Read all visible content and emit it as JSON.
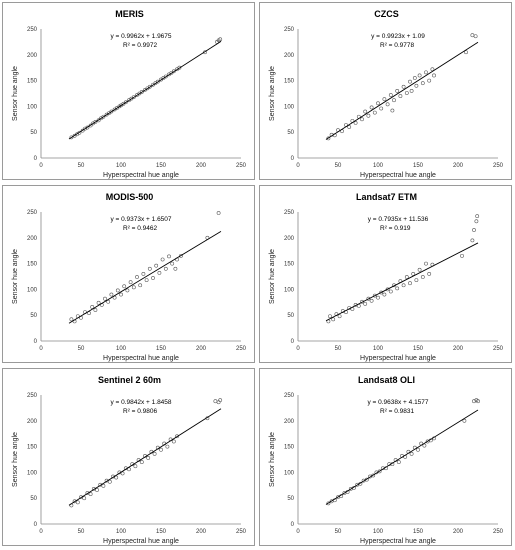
{
  "chart_data": [
    {
      "type": "scatter",
      "title": "MERIS",
      "xlabel": "Hyperspectral hue angle",
      "ylabel": "Sensor hue angle",
      "equation": "y = 0.9962x + 1.9675",
      "r2": "R² = 0.9972",
      "slope": 0.9962,
      "intercept": 1.9675,
      "xlim": [
        0,
        250
      ],
      "ylim": [
        0,
        250
      ],
      "xticks": [
        "0",
        "50",
        "100",
        "150",
        "200",
        "250"
      ],
      "yticks": [
        "0",
        "50",
        "100",
        "150",
        "200",
        "250"
      ],
      "points": [
        [
          38,
          40
        ],
        [
          42,
          43
        ],
        [
          45,
          46
        ],
        [
          48,
          49
        ],
        [
          52,
          53
        ],
        [
          55,
          57
        ],
        [
          58,
          59
        ],
        [
          62,
          63
        ],
        [
          65,
          67
        ],
        [
          68,
          70
        ],
        [
          72,
          73
        ],
        [
          75,
          77
        ],
        [
          78,
          80
        ],
        [
          82,
          84
        ],
        [
          85,
          87
        ],
        [
          88,
          90
        ],
        [
          92,
          94
        ],
        [
          95,
          97
        ],
        [
          98,
          100
        ],
        [
          100,
          102
        ],
        [
          103,
          105
        ],
        [
          106,
          108
        ],
        [
          110,
          112
        ],
        [
          113,
          115
        ],
        [
          116,
          118
        ],
        [
          120,
          122
        ],
        [
          123,
          125
        ],
        [
          126,
          128
        ],
        [
          130,
          132
        ],
        [
          133,
          135
        ],
        [
          136,
          138
        ],
        [
          140,
          142
        ],
        [
          143,
          145
        ],
        [
          146,
          148
        ],
        [
          150,
          152
        ],
        [
          153,
          155
        ],
        [
          156,
          158
        ],
        [
          160,
          162
        ],
        [
          163,
          165
        ],
        [
          166,
          168
        ],
        [
          170,
          172
        ],
        [
          173,
          175
        ],
        [
          205,
          205
        ],
        [
          220,
          225
        ],
        [
          222,
          228
        ],
        [
          224,
          230
        ]
      ]
    },
    {
      "type": "scatter",
      "title": "CZCS",
      "xlabel": "Hyperspectral hue angle",
      "ylabel": "Sensor hue angle",
      "equation": "y = 0.9923x + 1.09",
      "r2": "R² = 0.9778",
      "slope": 0.9923,
      "intercept": 1.09,
      "xlim": [
        0,
        250
      ],
      "ylim": [
        0,
        250
      ],
      "xticks": [
        "0",
        "50",
        "100",
        "150",
        "200",
        "250"
      ],
      "yticks": [
        "0",
        "50",
        "100",
        "150",
        "200",
        "250"
      ],
      "points": [
        [
          38,
          38
        ],
        [
          42,
          45
        ],
        [
          46,
          44
        ],
        [
          50,
          54
        ],
        [
          55,
          52
        ],
        [
          60,
          64
        ],
        [
          64,
          60
        ],
        [
          68,
          72
        ],
        [
          72,
          68
        ],
        [
          76,
          80
        ],
        [
          80,
          75
        ],
        [
          84,
          90
        ],
        [
          88,
          82
        ],
        [
          92,
          98
        ],
        [
          96,
          88
        ],
        [
          100,
          106
        ],
        [
          104,
          96
        ],
        [
          108,
          114
        ],
        [
          112,
          104
        ],
        [
          116,
          122
        ],
        [
          118,
          92
        ],
        [
          120,
          112
        ],
        [
          124,
          130
        ],
        [
          128,
          120
        ],
        [
          132,
          138
        ],
        [
          136,
          126
        ],
        [
          140,
          148
        ],
        [
          142,
          130
        ],
        [
          146,
          155
        ],
        [
          148,
          140
        ],
        [
          152,
          160
        ],
        [
          156,
          145
        ],
        [
          160,
          166
        ],
        [
          164,
          150
        ],
        [
          168,
          172
        ],
        [
          170,
          160
        ],
        [
          210,
          205
        ],
        [
          218,
          238
        ],
        [
          222,
          236
        ]
      ]
    },
    {
      "type": "scatter",
      "title": "MODIS-500",
      "xlabel": "Hyperspectral hue angle",
      "ylabel": "Sensor hue angle",
      "equation": "y = 0.9373x + 1.6507",
      "r2": "R² = 0.9462",
      "slope": 0.9373,
      "intercept": 1.6507,
      "xlim": [
        0,
        250
      ],
      "ylim": [
        0,
        250
      ],
      "xticks": [
        "0",
        "50",
        "100",
        "150",
        "200",
        "250"
      ],
      "yticks": [
        "0",
        "50",
        "100",
        "150",
        "200",
        "250"
      ],
      "points": [
        [
          38,
          42
        ],
        [
          42,
          38
        ],
        [
          46,
          48
        ],
        [
          50,
          45
        ],
        [
          55,
          56
        ],
        [
          60,
          54
        ],
        [
          64,
          66
        ],
        [
          68,
          60
        ],
        [
          72,
          74
        ],
        [
          76,
          70
        ],
        [
          80,
          82
        ],
        [
          84,
          76
        ],
        [
          88,
          90
        ],
        [
          92,
          84
        ],
        [
          96,
          98
        ],
        [
          100,
          90
        ],
        [
          104,
          106
        ],
        [
          108,
          98
        ],
        [
          112,
          114
        ],
        [
          116,
          104
        ],
        [
          120,
          124
        ],
        [
          124,
          108
        ],
        [
          128,
          130
        ],
        [
          132,
          118
        ],
        [
          136,
          140
        ],
        [
          140,
          122
        ],
        [
          144,
          146
        ],
        [
          148,
          132
        ],
        [
          152,
          158
        ],
        [
          156,
          140
        ],
        [
          160,
          164
        ],
        [
          164,
          150
        ],
        [
          168,
          140
        ],
        [
          170,
          158
        ],
        [
          175,
          165
        ],
        [
          208,
          200
        ],
        [
          222,
          248
        ]
      ]
    },
    {
      "type": "scatter",
      "title": "Landsat7 ETM",
      "xlabel": "Hyperspectral hue angle",
      "ylabel": "Sensor hue angle",
      "equation": "y = 0.7935x + 11.536",
      "r2": "R² = 0.919",
      "slope": 0.7935,
      "intercept": 11.536,
      "xlim": [
        0,
        250
      ],
      "ylim": [
        0,
        250
      ],
      "xticks": [
        "0",
        "50",
        "100",
        "150",
        "200",
        "250"
      ],
      "yticks": [
        "0",
        "50",
        "100",
        "150",
        "200",
        "250"
      ],
      "points": [
        [
          38,
          38
        ],
        [
          40,
          48
        ],
        [
          44,
          42
        ],
        [
          48,
          52
        ],
        [
          52,
          48
        ],
        [
          56,
          58
        ],
        [
          60,
          56
        ],
        [
          64,
          64
        ],
        [
          68,
          62
        ],
        [
          72,
          70
        ],
        [
          76,
          68
        ],
        [
          80,
          76
        ],
        [
          84,
          72
        ],
        [
          88,
          82
        ],
        [
          92,
          78
        ],
        [
          96,
          88
        ],
        [
          100,
          84
        ],
        [
          104,
          94
        ],
        [
          108,
          90
        ],
        [
          112,
          100
        ],
        [
          116,
          96
        ],
        [
          120,
          108
        ],
        [
          124,
          102
        ],
        [
          128,
          116
        ],
        [
          132,
          108
        ],
        [
          136,
          124
        ],
        [
          140,
          112
        ],
        [
          144,
          130
        ],
        [
          148,
          118
        ],
        [
          152,
          138
        ],
        [
          156,
          124
        ],
        [
          160,
          150
        ],
        [
          164,
          130
        ],
        [
          168,
          148
        ],
        [
          205,
          165
        ],
        [
          218,
          195
        ],
        [
          220,
          215
        ],
        [
          223,
          232
        ],
        [
          224,
          242
        ]
      ]
    },
    {
      "type": "scatter",
      "title": "Sentinel 2 60m",
      "xlabel": "Hyperspectral hue angle",
      "ylabel": "Sensor hue angle",
      "equation": "y = 0.9842x + 1.8458",
      "r2": "R² = 0.9806",
      "slope": 0.9842,
      "intercept": 1.8458,
      "xlim": [
        0,
        250
      ],
      "ylim": [
        0,
        250
      ],
      "xticks": [
        "0",
        "50",
        "100",
        "150",
        "200",
        "250"
      ],
      "yticks": [
        "0",
        "50",
        "100",
        "150",
        "200",
        "250"
      ],
      "points": [
        [
          38,
          36
        ],
        [
          42,
          44
        ],
        [
          46,
          42
        ],
        [
          50,
          52
        ],
        [
          54,
          50
        ],
        [
          58,
          60
        ],
        [
          62,
          58
        ],
        [
          66,
          68
        ],
        [
          70,
          66
        ],
        [
          74,
          76
        ],
        [
          78,
          74
        ],
        [
          82,
          84
        ],
        [
          86,
          82
        ],
        [
          90,
          92
        ],
        [
          94,
          90
        ],
        [
          98,
          100
        ],
        [
          102,
          98
        ],
        [
          106,
          108
        ],
        [
          110,
          106
        ],
        [
          114,
          116
        ],
        [
          118,
          112
        ],
        [
          122,
          124
        ],
        [
          126,
          120
        ],
        [
          130,
          132
        ],
        [
          134,
          128
        ],
        [
          138,
          140
        ],
        [
          142,
          136
        ],
        [
          146,
          148
        ],
        [
          150,
          144
        ],
        [
          154,
          156
        ],
        [
          158,
          150
        ],
        [
          162,
          164
        ],
        [
          166,
          160
        ],
        [
          170,
          170
        ],
        [
          208,
          205
        ],
        [
          218,
          238
        ],
        [
          222,
          236
        ],
        [
          224,
          240
        ]
      ]
    },
    {
      "type": "scatter",
      "title": "Landsat8 OLI",
      "xlabel": "Hyperspectral hue angle",
      "ylabel": "Sensor hue angle",
      "equation": "y = 0.9638x + 4.1577",
      "r2": "R² = 0.9831",
      "slope": 0.9638,
      "intercept": 4.1577,
      "xlim": [
        0,
        250
      ],
      "ylim": [
        0,
        250
      ],
      "xticks": [
        "0",
        "50",
        "100",
        "150",
        "200",
        "250"
      ],
      "yticks": [
        "0",
        "50",
        "100",
        "150",
        "200",
        "250"
      ],
      "points": [
        [
          38,
          40
        ],
        [
          42,
          44
        ],
        [
          46,
          46
        ],
        [
          50,
          52
        ],
        [
          54,
          54
        ],
        [
          58,
          60
        ],
        [
          62,
          62
        ],
        [
          66,
          68
        ],
        [
          70,
          70
        ],
        [
          74,
          76
        ],
        [
          78,
          78
        ],
        [
          82,
          84
        ],
        [
          86,
          86
        ],
        [
          90,
          92
        ],
        [
          94,
          94
        ],
        [
          98,
          100
        ],
        [
          102,
          102
        ],
        [
          106,
          108
        ],
        [
          110,
          108
        ],
        [
          114,
          116
        ],
        [
          118,
          116
        ],
        [
          122,
          124
        ],
        [
          126,
          120
        ],
        [
          130,
          132
        ],
        [
          134,
          130
        ],
        [
          138,
          140
        ],
        [
          142,
          136
        ],
        [
          146,
          148
        ],
        [
          150,
          144
        ],
        [
          154,
          156
        ],
        [
          158,
          152
        ],
        [
          162,
          160
        ],
        [
          166,
          162
        ],
        [
          170,
          166
        ],
        [
          208,
          200
        ],
        [
          220,
          238
        ],
        [
          223,
          240
        ],
        [
          225,
          238
        ]
      ]
    }
  ]
}
